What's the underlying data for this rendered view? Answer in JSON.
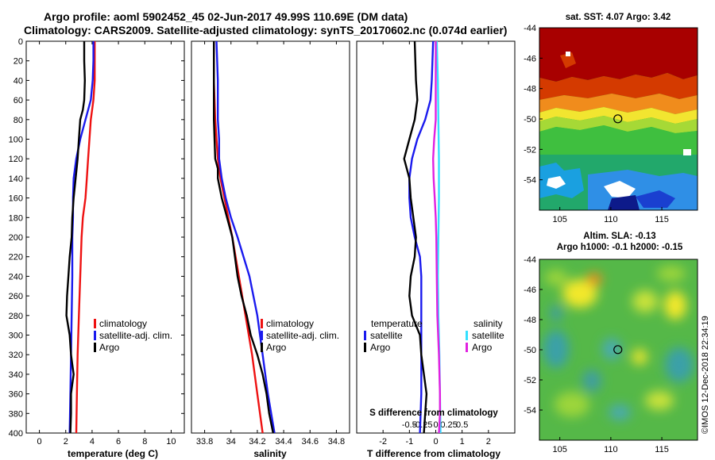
{
  "header": {
    "line1": "Argo profile: aoml 5902452_45 02-Jun-2017 49.99S 110.69E (DM data)",
    "line2": "Climatology: CARS2009. Satellite-adjusted climatology: synTS_20170602.nc (0.074d earlier)"
  },
  "colors": {
    "climatology": "#ee1111",
    "satellite": "#1a1aee",
    "argo": "#000000",
    "salinity_satellite": "#33e0ff",
    "salinity_argo": "#e022e0"
  },
  "chart_data": [
    {
      "id": "temperature",
      "type": "line",
      "xlabel": "temperature (deg C)",
      "ylabel": "",
      "xlim": [
        -1,
        11
      ],
      "ylim": [
        400,
        0
      ],
      "xticks": [
        0,
        2,
        4,
        6,
        8,
        10
      ],
      "yticks": [
        0,
        20,
        40,
        60,
        80,
        100,
        120,
        140,
        160,
        180,
        200,
        220,
        240,
        260,
        280,
        300,
        320,
        340,
        360,
        380,
        400
      ],
      "legend": [
        "climatology",
        "satellite-adj. clim.",
        "Argo"
      ],
      "series": [
        {
          "name": "climatology",
          "color_key": "climatology",
          "depth": [
            0,
            20,
            40,
            60,
            80,
            100,
            120,
            140,
            160,
            180,
            200,
            240,
            280,
            320,
            360,
            400
          ],
          "values": [
            4.2,
            4.2,
            4.2,
            4.1,
            3.9,
            3.8,
            3.7,
            3.6,
            3.5,
            3.3,
            3.2,
            3.1,
            3.0,
            2.9,
            2.85,
            2.8
          ]
        },
        {
          "name": "satellite-adj. clim.",
          "color_key": "satellite",
          "depth": [
            0,
            20,
            40,
            60,
            80,
            100,
            120,
            140,
            160,
            180,
            200,
            240,
            280,
            320,
            360,
            400
          ],
          "values": [
            4.1,
            4.1,
            4.05,
            3.9,
            3.5,
            3.1,
            2.8,
            2.6,
            2.55,
            2.55,
            2.5,
            2.5,
            2.45,
            2.4,
            2.35,
            2.3
          ]
        },
        {
          "name": "Argo",
          "color_key": "argo",
          "depth": [
            0,
            20,
            40,
            60,
            70,
            80,
            100,
            120,
            140,
            160,
            180,
            200,
            220,
            240,
            260,
            280,
            300,
            320,
            330,
            340,
            350,
            360,
            380,
            400
          ],
          "values": [
            3.4,
            3.4,
            3.45,
            3.4,
            3.3,
            3.1,
            3.0,
            2.9,
            2.75,
            2.6,
            2.5,
            2.45,
            2.3,
            2.2,
            2.1,
            2.05,
            2.3,
            2.4,
            2.5,
            2.6,
            2.5,
            2.4,
            2.4,
            2.35
          ]
        }
      ]
    },
    {
      "id": "salinity",
      "type": "line",
      "xlabel": "salinity",
      "ylabel": "",
      "xlim": [
        33.7,
        34.9
      ],
      "ylim": [
        400,
        0
      ],
      "xticks": [
        33.8,
        34,
        34.2,
        34.4,
        34.6,
        34.8
      ],
      "xtick_labels": [
        "33.8",
        "34",
        "34.2",
        "34.4",
        "34.6",
        "34.8"
      ],
      "legend": [
        "climatology",
        "satellite-adj. clim.",
        "Argo"
      ],
      "series": [
        {
          "name": "climatology",
          "color_key": "climatology",
          "depth": [
            0,
            40,
            80,
            120,
            140,
            160,
            180,
            200,
            240,
            280,
            320,
            360,
            400
          ],
          "values": [
            33.87,
            33.87,
            33.88,
            33.9,
            33.92,
            33.95,
            33.98,
            34.01,
            34.06,
            34.11,
            34.16,
            34.2,
            34.24
          ]
        },
        {
          "name": "satellite-adj. clim.",
          "color_key": "satellite",
          "depth": [
            0,
            40,
            80,
            100,
            120,
            140,
            160,
            180,
            200,
            240,
            280,
            320,
            360,
            400
          ],
          "values": [
            33.89,
            33.9,
            33.9,
            33.91,
            33.91,
            33.93,
            33.96,
            34.0,
            34.05,
            34.14,
            34.2,
            34.24,
            34.28,
            34.33
          ]
        },
        {
          "name": "Argo",
          "color_key": "argo",
          "depth": [
            0,
            40,
            80,
            120,
            130,
            140,
            160,
            180,
            200,
            220,
            240,
            260,
            280,
            300,
            320,
            340,
            360,
            380,
            400
          ],
          "values": [
            33.87,
            33.87,
            33.87,
            33.88,
            33.9,
            33.9,
            33.93,
            33.97,
            34.01,
            34.03,
            34.05,
            34.08,
            34.12,
            34.15,
            34.2,
            34.24,
            34.27,
            34.29,
            34.32
          ]
        }
      ]
    },
    {
      "id": "difference",
      "type": "line",
      "xlabel": "T difference from climatology",
      "ylabel": "",
      "xlim": [
        -3,
        3
      ],
      "ylim": [
        400,
        0
      ],
      "xticks": [
        -2,
        -1,
        0,
        1,
        2
      ],
      "legend_temperature_title": "temperature",
      "legend_salinity_title": "salinity",
      "legend_temperature": [
        "satellite",
        "Argo"
      ],
      "legend_salinity": [
        "satellite",
        "Argo"
      ],
      "secondary_axis_title": "S difference from climatology",
      "secondary_xticks": [
        -0.5,
        -0.25,
        0,
        0.25,
        0.5
      ],
      "secondary_xtick_labels": [
        "-0.5",
        "-0.25",
        "0",
        "0.25",
        "0.5"
      ],
      "secondary_xlim": [
        -1.5,
        1.5
      ],
      "series": [
        {
          "name": "T satellite",
          "color_key": "satellite",
          "depth": [
            0,
            40,
            60,
            80,
            100,
            120,
            140,
            160,
            180,
            200,
            220,
            240,
            280,
            320,
            360,
            400
          ],
          "values": [
            -0.1,
            -0.15,
            -0.2,
            -0.4,
            -0.7,
            -0.9,
            -1.0,
            -1.0,
            -0.95,
            -0.8,
            -0.6,
            -0.55,
            -0.55,
            -0.55,
            -0.55,
            -0.6
          ]
        },
        {
          "name": "T Argo",
          "color_key": "argo",
          "depth": [
            0,
            40,
            60,
            70,
            80,
            100,
            120,
            140,
            160,
            180,
            200,
            220,
            240,
            260,
            280,
            300,
            320,
            340,
            360,
            380,
            400
          ],
          "values": [
            -0.8,
            -0.75,
            -0.7,
            -0.75,
            -0.8,
            -1.0,
            -1.2,
            -1.0,
            -0.95,
            -0.85,
            -0.75,
            -0.8,
            -0.95,
            -1.0,
            -0.9,
            -0.6,
            -0.55,
            -0.45,
            -0.35,
            -0.4,
            -0.45
          ]
        },
        {
          "name": "S satellite",
          "color_key": "salinity_satellite",
          "depth": [
            0,
            40,
            80,
            120,
            160,
            200,
            240,
            280,
            320,
            360,
            400
          ],
          "values": [
            0.02,
            0.04,
            0.05,
            0.06,
            0.06,
            0.05,
            0.04,
            0.05,
            0.07,
            0.08,
            0.09
          ]
        },
        {
          "name": "S Argo",
          "color_key": "salinity_argo",
          "depth": [
            0,
            40,
            80,
            100,
            120,
            140,
            160,
            180,
            200,
            240,
            280,
            320,
            360,
            380,
            400
          ],
          "values": [
            0.0,
            0.0,
            0.0,
            -0.03,
            -0.05,
            -0.04,
            -0.02,
            0.0,
            0.01,
            0.02,
            0.03,
            0.06,
            0.08,
            0.08,
            0.06
          ]
        }
      ]
    },
    {
      "id": "sst-map",
      "type": "heatmap",
      "title": "sat. SST: 4.07 Argo: 3.42",
      "xticks": [
        105,
        110,
        115
      ],
      "yticks": [
        -44,
        -46,
        -48,
        -50,
        -52,
        -54
      ],
      "xlim": [
        103,
        118.5
      ],
      "ylim": [
        -56,
        -44
      ],
      "argo_position": {
        "lon": 110.69,
        "lat": -49.99
      }
    },
    {
      "id": "sla-map",
      "type": "heatmap",
      "title": "Altim. SLA: -0.13",
      "subtitle": "Argo h1000: -0.1 h2000: -0.15",
      "xticks": [
        105,
        110,
        115
      ],
      "yticks": [
        -44,
        -46,
        -48,
        -50,
        -52,
        -54
      ],
      "xlim": [
        103,
        118.5
      ],
      "ylim": [
        -56,
        -44
      ],
      "argo_position": {
        "lon": 110.69,
        "lat": -49.99
      }
    }
  ],
  "footer": {
    "credit": "©IMOS 12-Dec-2018 22:34:19"
  }
}
